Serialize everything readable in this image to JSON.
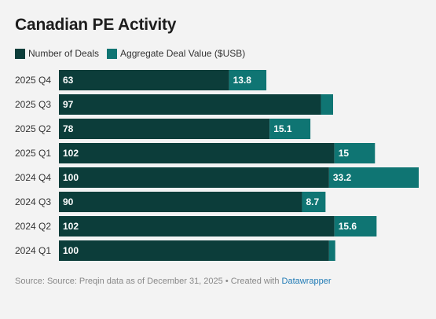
{
  "title": "Canadian PE Activity",
  "legend": {
    "items": [
      {
        "label": "Number of Deals",
        "color": "#0c3d3a"
      },
      {
        "label": "Aggregate Deal Value ($USB)",
        "color": "#0f7573"
      }
    ]
  },
  "footer": {
    "source_text": "Source: Source: Preqin data as of December 31, 2025 • Created with ",
    "link_text": "Datawrapper"
  },
  "colors": {
    "deals": "#0c3d3a",
    "value": "#0f7573",
    "background": "#f3f3f3"
  },
  "chart_data": {
    "type": "bar",
    "orientation": "horizontal",
    "stacked": true,
    "categories": [
      "2025 Q4",
      "2025 Q3",
      "2025 Q2",
      "2025 Q1",
      "2024 Q4",
      "2024 Q3",
      "2024 Q2",
      "2024 Q1"
    ],
    "series": [
      {
        "name": "Number of Deals",
        "values": [
          63,
          97,
          78,
          102,
          100,
          90,
          102,
          100
        ],
        "labels": [
          "63",
          "97",
          "78",
          "102",
          "100",
          "90",
          "102",
          "100"
        ]
      },
      {
        "name": "Aggregate Deal Value ($USB)",
        "values": [
          13.8,
          4.5,
          15.1,
          15,
          33.2,
          8.7,
          15.6,
          2.3
        ],
        "labels": [
          "13.8",
          "",
          "15.1",
          "15",
          "33.2",
          "8.7",
          "15.6",
          ""
        ]
      }
    ],
    "xlim": [
      0,
      133.2
    ]
  }
}
